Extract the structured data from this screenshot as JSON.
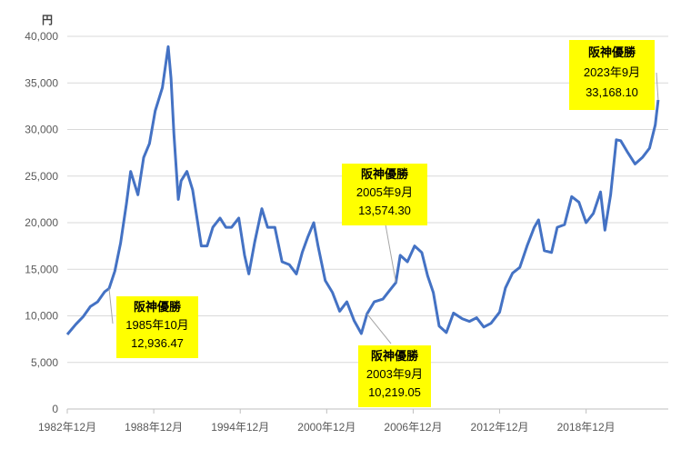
{
  "chart_data": {
    "type": "line",
    "unit_label": "円",
    "ylim": [
      0,
      40000
    ],
    "y_ticks": [
      "0",
      "5,000",
      "10,000",
      "15,000",
      "20,000",
      "25,000",
      "30,000",
      "35,000",
      "40,000"
    ],
    "x_tick_labels": [
      "1982年12月",
      "1988年12月",
      "1994年12月",
      "2000年12月",
      "2006年12月",
      "2012年12月",
      "2018年12月"
    ],
    "grid": "horizontal",
    "legend": "none",
    "line_color": "#4472c4",
    "series": [
      {
        "x": [
          1982.9,
          1983.5,
          1984.0,
          1984.5,
          1985.0,
          1985.5,
          1985.8,
          1986.2,
          1986.6,
          1987.0,
          1987.3,
          1987.8,
          1988.2,
          1988.6,
          1989.0,
          1989.5,
          1989.9,
          1990.1,
          1990.3,
          1990.6,
          1990.8,
          1991.2,
          1991.6,
          1992.2,
          1992.6,
          1993.0,
          1993.5,
          1993.9,
          1994.3,
          1994.8,
          1995.2,
          1995.5,
          1995.9,
          1996.4,
          1996.8,
          1997.3,
          1997.8,
          1998.3,
          1998.8,
          1999.2,
          1999.6,
          2000.0,
          2000.3,
          2000.8,
          2001.3,
          2001.8,
          2002.3,
          2002.8,
          2003.3,
          2003.7,
          2004.2,
          2004.8,
          2005.3,
          2005.7,
          2006.0,
          2006.5,
          2007.0,
          2007.5,
          2007.9,
          2008.3,
          2008.7,
          2009.2,
          2009.7,
          2010.3,
          2010.8,
          2011.3,
          2011.8,
          2012.3,
          2012.9,
          2013.3,
          2013.8,
          2014.3,
          2014.8,
          2015.3,
          2015.6,
          2016.0,
          2016.5,
          2016.9,
          2017.4,
          2017.9,
          2018.4,
          2018.9,
          2019.4,
          2019.9,
          2020.2,
          2020.6,
          2021.0,
          2021.3,
          2021.8,
          2022.3,
          2022.8,
          2023.3,
          2023.7,
          2023.9
        ],
        "values": [
          8000,
          9100,
          9900,
          11000,
          11500,
          12600,
          12936,
          14800,
          17800,
          22000,
          25500,
          23000,
          27000,
          28500,
          32000,
          34500,
          38900,
          35500,
          29500,
          22500,
          24500,
          25500,
          23500,
          17500,
          17500,
          19500,
          20500,
          19500,
          19500,
          20500,
          16500,
          14500,
          17900,
          21500,
          19500,
          19500,
          15800,
          15500,
          14500,
          16800,
          18500,
          20000,
          17500,
          13800,
          12500,
          10500,
          11500,
          9500,
          8100,
          10219,
          11500,
          11800,
          12800,
          13574,
          16500,
          15800,
          17500,
          16800,
          14300,
          12500,
          8900,
          8200,
          10300,
          9700,
          9400,
          9800,
          8800,
          9200,
          10400,
          13000,
          14600,
          15200,
          17500,
          19500,
          20300,
          17000,
          16800,
          19500,
          19800,
          22800,
          22200,
          20000,
          21000,
          23300,
          19200,
          23000,
          28900,
          28800,
          27500,
          26300,
          27000,
          28000,
          30500,
          33168
        ]
      }
    ],
    "annotations": [
      {
        "title": "阪神優勝",
        "date": "1985年10月",
        "value": "12,936.47"
      },
      {
        "title": "阪神優勝",
        "date": "2003年9月",
        "value": "10,219.05"
      },
      {
        "title": "阪神優勝",
        "date": "2005年9月",
        "value": "13,574.30"
      },
      {
        "title": "阪神優勝",
        "date": "2023年9月",
        "value": "33,168.10"
      }
    ]
  }
}
